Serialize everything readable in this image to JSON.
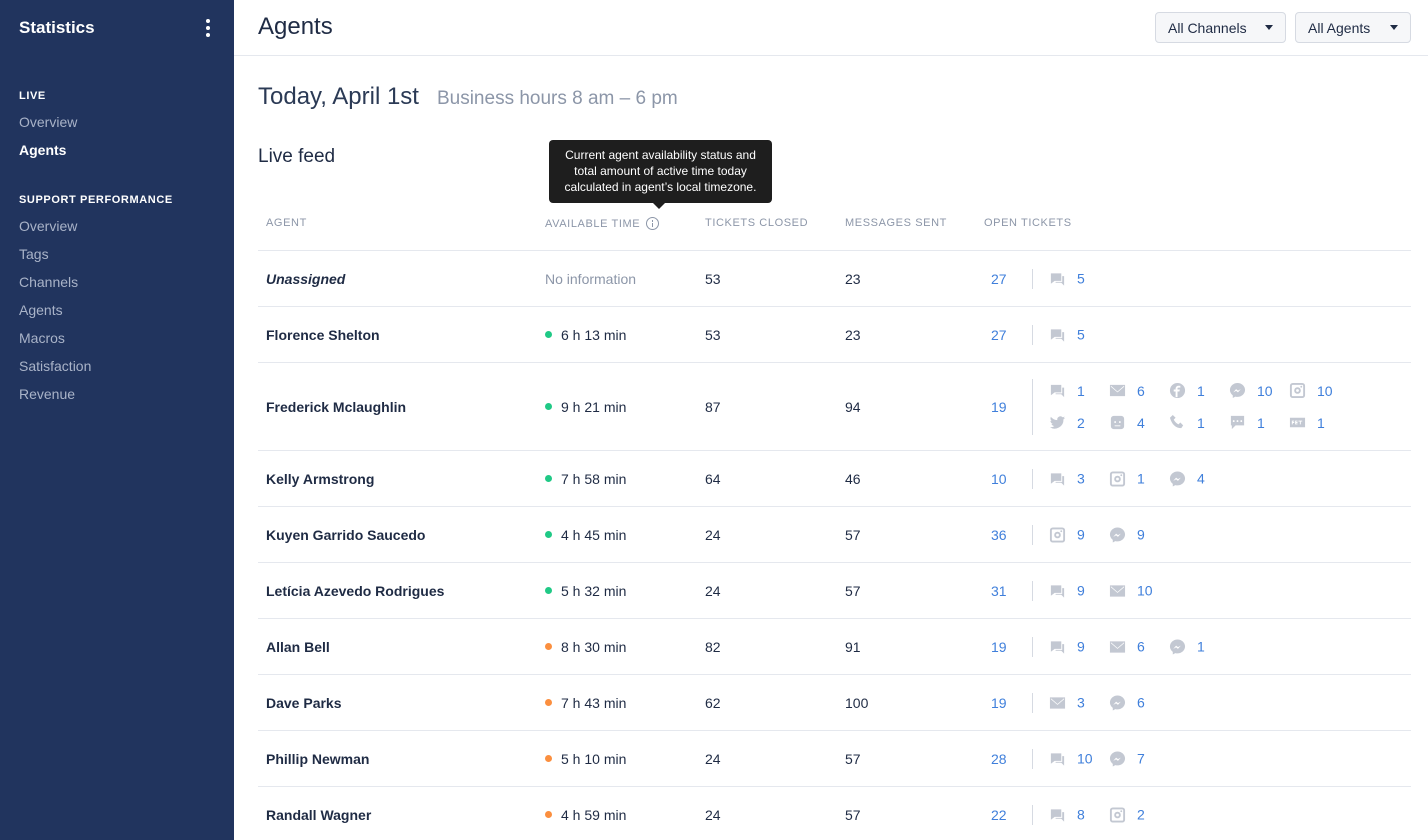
{
  "sidebar": {
    "title": "Statistics",
    "live_title": "LIVE",
    "live_items": [
      "Overview",
      "Agents"
    ],
    "perf_title": "SUPPORT PERFORMANCE",
    "perf_items": [
      "Overview",
      "Tags",
      "Channels",
      "Agents",
      "Macros",
      "Satisfaction",
      "Revenue"
    ]
  },
  "header": {
    "title": "Agents",
    "filter_channels": "All Channels",
    "filter_agents": "All Agents"
  },
  "main": {
    "date_title": "Today, April 1st",
    "business_hours": "Business hours 8 am – 6 pm",
    "section_title": "Live feed",
    "tooltip": "Current agent availability status and total amount of active time today calculated in agent’s local timezone."
  },
  "table": {
    "columns": [
      "AGENT",
      "AVAILABLE TIME",
      "TICKETS CLOSED",
      "MESSAGES SENT",
      "OPEN TICKETS"
    ],
    "rows": [
      {
        "agent": "Unassigned",
        "time": "No information",
        "closed": "53",
        "sent": "23",
        "open": "27",
        "channels": [
          [
            "chat-icon",
            "5"
          ]
        ]
      },
      {
        "agent": "Florence Shelton",
        "time": "6 h 13 min",
        "status": "green",
        "closed": "53",
        "sent": "23",
        "open": "27",
        "channels": [
          [
            "chat-icon",
            "5"
          ]
        ]
      },
      {
        "agent": "Frederick Mclaughlin",
        "time": "9 h 21 min",
        "status": "green",
        "closed": "87",
        "sent": "94",
        "open": "19",
        "channels": [
          [
            "chat-icon",
            "1"
          ],
          [
            "email-icon",
            "6"
          ],
          [
            "facebook-icon",
            "1"
          ],
          [
            "messenger-icon",
            "10"
          ],
          [
            "instagram-icon",
            "10"
          ],
          [
            "twitter-icon",
            "2"
          ],
          [
            "bot-icon",
            "4"
          ],
          [
            "phone-icon",
            "1"
          ],
          [
            "sms-icon",
            "1"
          ],
          [
            "api-icon",
            "1"
          ]
        ]
      },
      {
        "agent": "Kelly Armstrong",
        "time": "7 h 58 min",
        "status": "green",
        "closed": "64",
        "sent": "46",
        "open": "10",
        "channels": [
          [
            "chat-icon",
            "3"
          ],
          [
            "instagram-icon",
            "1"
          ],
          [
            "messenger-icon",
            "4"
          ]
        ]
      },
      {
        "agent": "Kuyen Garrido Saucedo",
        "time": "4 h 45 min",
        "status": "green",
        "closed": "24",
        "sent": "57",
        "open": "36",
        "channels": [
          [
            "instagram-icon",
            "9"
          ],
          [
            "messenger-icon",
            "9"
          ]
        ]
      },
      {
        "agent": "Letícia Azevedo Rodrigues",
        "time": "5 h 32 min",
        "status": "green",
        "closed": "24",
        "sent": "57",
        "open": "31",
        "channels": [
          [
            "chat-icon",
            "9"
          ],
          [
            "email-icon",
            "10"
          ]
        ]
      },
      {
        "agent": "Allan Bell",
        "time": "8 h 30 min",
        "status": "orange",
        "closed": "82",
        "sent": "91",
        "open": "19",
        "channels": [
          [
            "chat-icon",
            "9"
          ],
          [
            "email-icon",
            "6"
          ],
          [
            "messenger-icon",
            "1"
          ]
        ]
      },
      {
        "agent": "Dave Parks",
        "time": "7 h 43 min",
        "status": "orange",
        "closed": "62",
        "sent": "100",
        "open": "19",
        "channels": [
          [
            "email-icon",
            "3"
          ],
          [
            "messenger-icon",
            "6"
          ]
        ]
      },
      {
        "agent": "Phillip Newman",
        "time": "5 h 10 min",
        "status": "orange",
        "closed": "24",
        "sent": "57",
        "open": "28",
        "channels": [
          [
            "chat-icon",
            "10"
          ],
          [
            "messenger-icon",
            "7"
          ]
        ]
      },
      {
        "agent": "Randall Wagner",
        "time": "4 h 59 min",
        "status": "orange",
        "closed": "24",
        "sent": "57",
        "open": "22",
        "channels": [
          [
            "chat-icon",
            "8"
          ],
          [
            "instagram-icon",
            "2"
          ]
        ]
      }
    ]
  },
  "colors": {
    "sidebar_bg": "#21345e",
    "link_blue": "#3f7fdb",
    "status_green": "#20c986",
    "status_orange": "#fb8f3f"
  }
}
